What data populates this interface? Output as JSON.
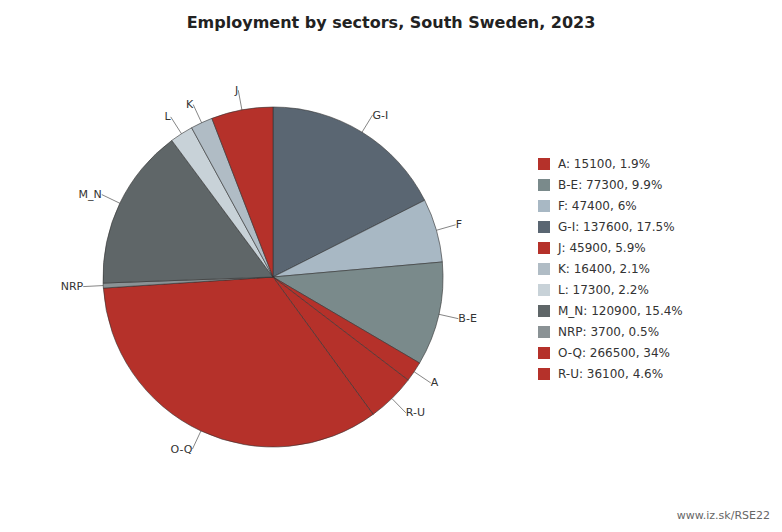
{
  "chart_data": {
    "type": "pie",
    "title": "Employment by sectors, South Sweden, 2023",
    "categories": [
      "G-I",
      "F",
      "B-E",
      "A",
      "R-U",
      "O-Q",
      "NRP",
      "M_N",
      "L",
      "K",
      "J"
    ],
    "values": [
      137600,
      47400,
      77300,
      15100,
      36100,
      266500,
      3700,
      120900,
      17300,
      16400,
      45900
    ],
    "colors": [
      "#5a6672",
      "#a8b8c4",
      "#7a8a8b",
      "#b5312a",
      "#b5312a",
      "#b5312a",
      "#8a9295",
      "#5f6668",
      "#c8d2d8",
      "#b0bcc5",
      "#b5312a"
    ],
    "legend": "right",
    "legend_labels": [
      "A: 15100, 1.9%",
      "B-E: 77300, 9.9%",
      "F: 47400, 6%",
      "G-I: 137600, 17.5%",
      "J: 45900, 5.9%",
      "K: 16400, 2.1%",
      "L: 17300, 2.2%",
      "M_N: 120900, 15.4%",
      "NRP: 3700, 0.5%",
      "O-Q: 266500, 34%",
      "R-U: 36100, 4.6%"
    ],
    "legend_colors": [
      "#b5312a",
      "#7a8a8b",
      "#a8b8c4",
      "#5a6672",
      "#b5312a",
      "#b0bcc5",
      "#c8d2d8",
      "#5f6668",
      "#8a9295",
      "#b5312a",
      "#b5312a"
    ],
    "annotations": [
      "www.iz.sk/RSE22"
    ]
  }
}
